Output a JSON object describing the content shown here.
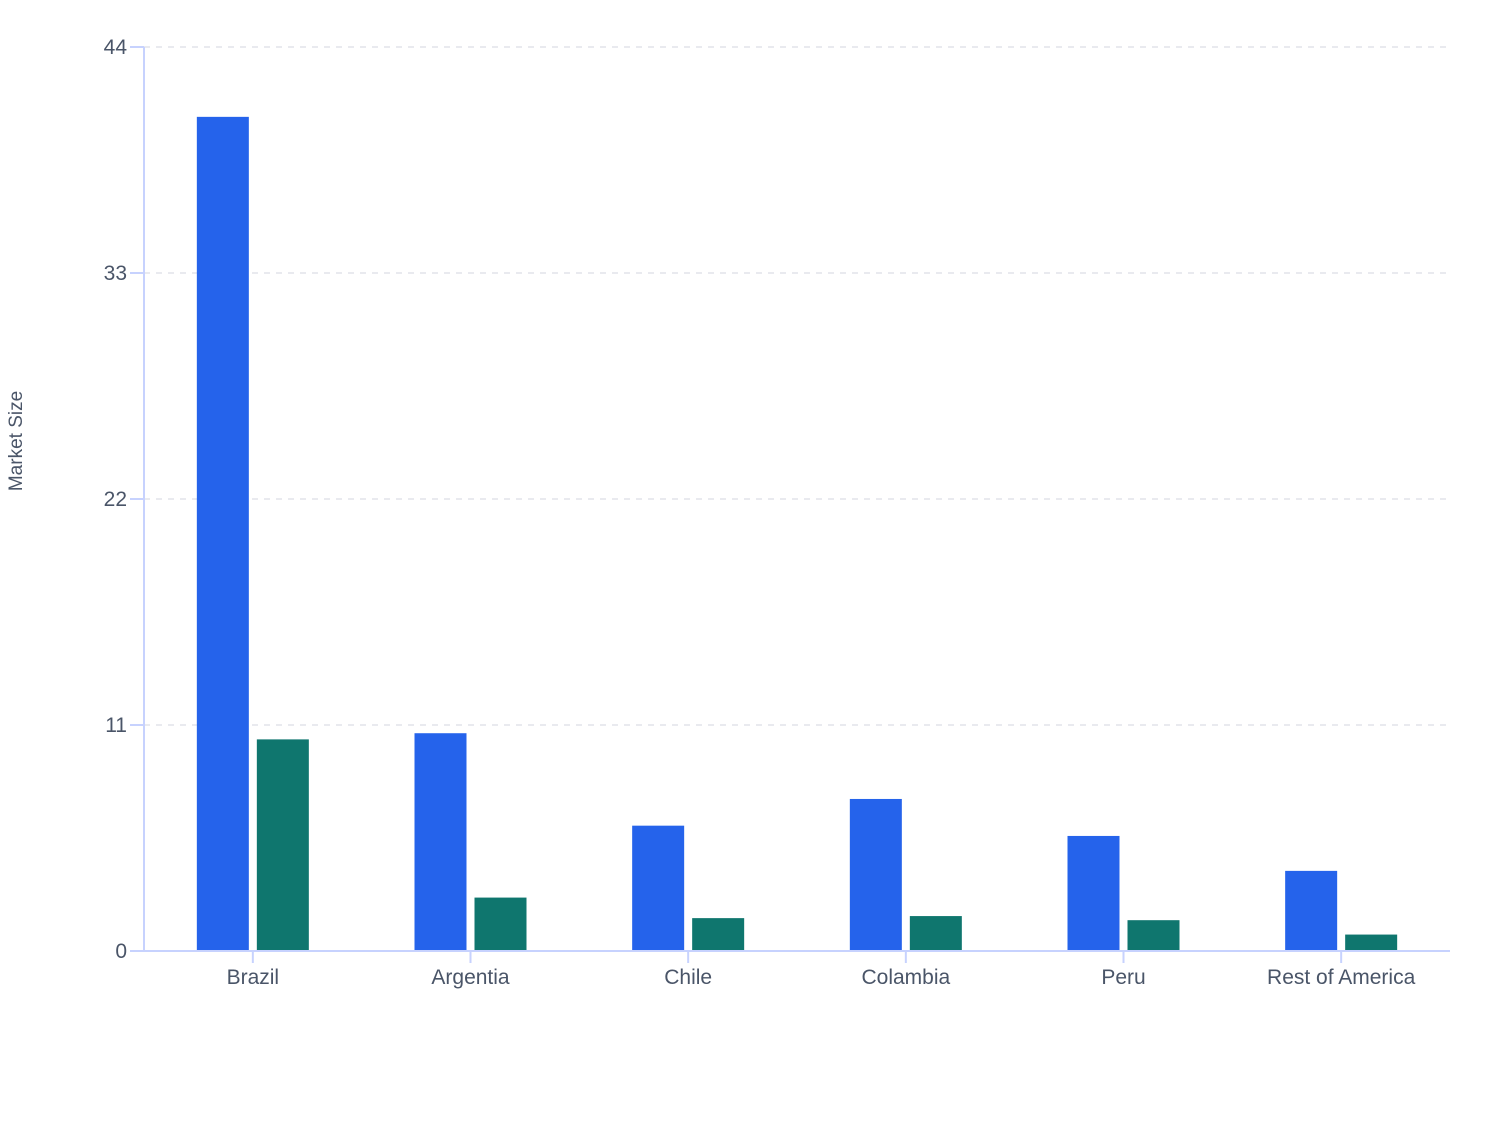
{
  "chart_data": {
    "type": "bar",
    "title": "",
    "xlabel": "",
    "ylabel": "Market Size",
    "ylim": [
      0,
      44
    ],
    "yticks": [
      0,
      11,
      22,
      33,
      44
    ],
    "grid": true,
    "legend": "none",
    "categories": [
      "Brazil",
      "Argentia",
      "Chile",
      "Colambia",
      "Peru",
      "Rest of America"
    ],
    "series": [
      {
        "values": [
          40.6,
          10.6,
          6.1,
          7.4,
          5.6,
          3.9
        ],
        "color": "#2563eb"
      },
      {
        "values": [
          10.3,
          2.6,
          1.6,
          1.7,
          1.5,
          0.8
        ],
        "color": "#0f766e"
      }
    ]
  }
}
